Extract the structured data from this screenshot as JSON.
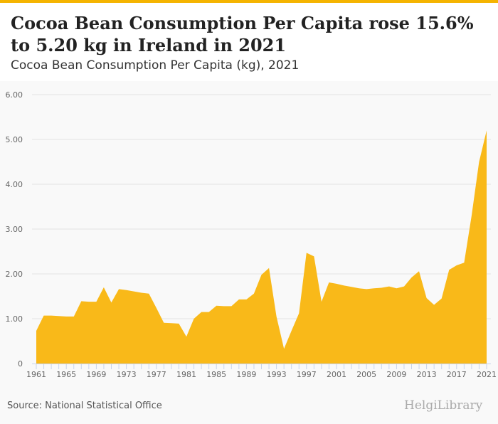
{
  "header": {
    "title": "Cocoa Bean Consumption Per Capita rose 15.6% to 5.20 kg in Ireland in 2021",
    "subtitle": "Cocoa Bean Consumption Per Capita (kg), 2021"
  },
  "footer": {
    "source": "Source: National Statistical Office",
    "logo": "HelgiLibrary"
  },
  "colors": {
    "fill": "#f9b919",
    "accent": "#f5b400"
  },
  "chart_data": {
    "type": "area",
    "title": "Cocoa Bean Consumption Per Capita (kg), 2021",
    "xlabel": "",
    "ylabel": "",
    "ylim": [
      0,
      6
    ],
    "yticks": [
      0,
      1,
      2,
      3,
      4,
      5,
      6
    ],
    "ytick_labels": [
      "0",
      "1.00",
      "2.00",
      "3.00",
      "4.00",
      "5.00",
      "6.00"
    ],
    "xtick_labels": [
      "1961",
      "1965",
      "1969",
      "1973",
      "1977",
      "1981",
      "1985",
      "1989",
      "1993",
      "1997",
      "2001",
      "2005",
      "2009",
      "2013",
      "2017",
      "2021"
    ],
    "grid": true,
    "x": [
      1961,
      1962,
      1963,
      1964,
      1965,
      1966,
      1967,
      1968,
      1969,
      1970,
      1971,
      1972,
      1973,
      1974,
      1975,
      1976,
      1977,
      1978,
      1979,
      1980,
      1981,
      1982,
      1983,
      1984,
      1985,
      1986,
      1987,
      1988,
      1989,
      1990,
      1991,
      1992,
      1993,
      1994,
      1995,
      1996,
      1997,
      1998,
      1999,
      2000,
      2001,
      2002,
      2003,
      2004,
      2005,
      2006,
      2007,
      2008,
      2009,
      2010,
      2011,
      2012,
      2013,
      2014,
      2015,
      2016,
      2017,
      2018,
      2019,
      2020,
      2021
    ],
    "values": [
      0.73,
      1.07,
      1.07,
      1.06,
      1.05,
      1.05,
      1.39,
      1.38,
      1.38,
      1.7,
      1.36,
      1.66,
      1.64,
      1.61,
      1.58,
      1.56,
      1.24,
      0.91,
      0.9,
      0.89,
      0.6,
      1.0,
      1.15,
      1.15,
      1.29,
      1.28,
      1.28,
      1.43,
      1.43,
      1.56,
      1.98,
      2.13,
      1.05,
      0.33,
      0.73,
      1.12,
      2.47,
      2.39,
      1.38,
      1.81,
      1.78,
      1.74,
      1.71,
      1.68,
      1.66,
      1.68,
      1.69,
      1.72,
      1.68,
      1.72,
      1.92,
      2.06,
      1.46,
      1.31,
      1.45,
      2.09,
      2.19,
      2.25,
      3.3,
      4.5,
      5.2
    ]
  }
}
